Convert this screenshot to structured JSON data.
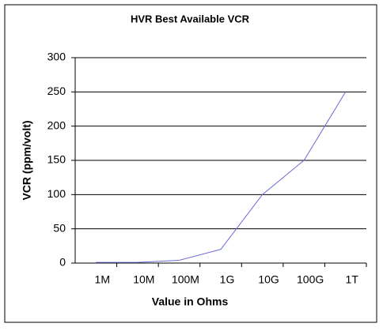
{
  "chart_data": {
    "type": "line",
    "title": "HVR Best Available VCR",
    "x_label": "Value in Ohms",
    "y_label": "VCR (ppm/volt)",
    "categories": [
      "1M",
      "10M",
      "100M",
      "1G",
      "10G",
      "100G",
      "1T"
    ],
    "series": [
      {
        "name": "VCR",
        "color": "#6b6bd6",
        "values": [
          1,
          1,
          4,
          20,
          100,
          150,
          250
        ]
      }
    ],
    "ylim": [
      0,
      300
    ],
    "yticks": [
      0,
      50,
      100,
      150,
      200,
      250,
      300
    ],
    "grid": true
  }
}
